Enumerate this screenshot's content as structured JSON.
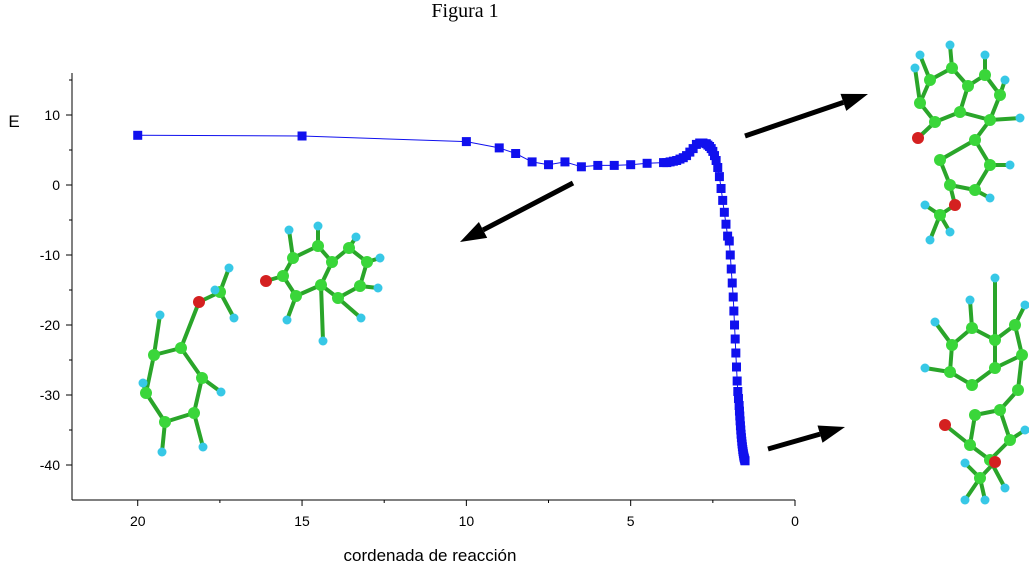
{
  "figure": {
    "title": "Figura 1"
  },
  "colors": {
    "series": "#1010ee",
    "carbon": "#3ad63a",
    "hydrogen": "#37c8e6",
    "oxygen": "#d42020",
    "arrow": "#000000"
  },
  "chart_data": {
    "type": "scatter",
    "title": "Figura 1",
    "xlabel": "cordenada de reacción",
    "ylabel": "E",
    "xlim": [
      22,
      0
    ],
    "ylim": [
      -45,
      16
    ],
    "x_reversed": true,
    "grid": false,
    "legend": "none",
    "xticks": [
      20,
      15,
      10,
      5,
      0
    ],
    "yticks": [
      10,
      0,
      -10,
      -20,
      -30,
      -40
    ],
    "xtick_labels": [
      "20",
      "15",
      "10",
      "5",
      "0"
    ],
    "ytick_labels": [
      "10",
      "0",
      "-10",
      "-20",
      "-30",
      "-40"
    ],
    "series": [
      {
        "marker": "square",
        "line": "solid",
        "x": [
          20,
          15,
          10,
          9,
          8.5,
          8,
          7.5,
          7,
          6.5,
          6,
          5.5,
          5,
          4.5,
          4,
          3.9,
          3.8,
          3.7,
          3.6,
          3.5,
          3.4,
          3.3,
          3.2,
          3.1,
          3.0,
          2.9,
          2.8,
          2.7,
          2.65,
          2.6,
          2.55,
          2.5,
          2.45,
          2.4,
          2.35,
          2.3,
          2.25,
          2.2,
          2.15,
          2.1,
          2.05,
          2.0,
          1.97,
          1.94,
          1.91,
          1.88,
          1.86,
          1.84,
          1.82,
          1.8,
          1.78,
          1.76,
          1.74,
          1.72,
          1.7,
          1.69,
          1.68,
          1.67,
          1.66,
          1.65,
          1.64,
          1.63,
          1.62,
          1.61,
          1.6,
          1.59,
          1.58,
          1.57,
          1.56,
          1.55,
          1.54,
          1.53,
          1.52
        ],
        "y": [
          7.1,
          7.0,
          6.2,
          5.3,
          4.5,
          3.3,
          2.9,
          3.3,
          2.6,
          2.8,
          2.8,
          2.9,
          3.1,
          3.2,
          3.2,
          3.3,
          3.4,
          3.5,
          3.7,
          3.9,
          4.2,
          4.7,
          5.2,
          5.8,
          6.0,
          6.0,
          5.9,
          5.7,
          5.5,
          5.2,
          4.8,
          4.2,
          3.5,
          2.5,
          1.2,
          -0.5,
          -2.2,
          -3.9,
          -5.6,
          -7.3,
          -8.0,
          -10.0,
          -12.0,
          -14.0,
          -16.0,
          -18.0,
          -20.0,
          -22.0,
          -24.0,
          -26.0,
          -28.0,
          -29.5,
          -30.5,
          -31.5,
          -32.3,
          -33.0,
          -33.7,
          -34.4,
          -35.0,
          -35.6,
          -36.1,
          -36.6,
          -37.0,
          -37.4,
          -37.8,
          -38.1,
          -38.4,
          -38.7,
          -38.9,
          -39.1,
          -39.3,
          -39.4
        ]
      }
    ]
  }
}
